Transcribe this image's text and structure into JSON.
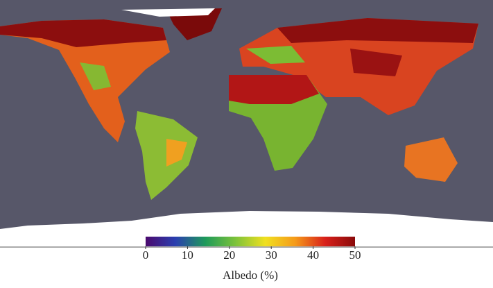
{
  "colorbar": {
    "label": "Albedo (%)",
    "range": [
      0,
      50
    ],
    "ticks": [
      0,
      10,
      20,
      30,
      40,
      50
    ],
    "colors": [
      "#4b0a6e",
      "#2a3fb0",
      "#1e9a5a",
      "#7cc23a",
      "#f0e020",
      "#f59a1a",
      "#d8201a",
      "#8a0a0a"
    ]
  }
}
